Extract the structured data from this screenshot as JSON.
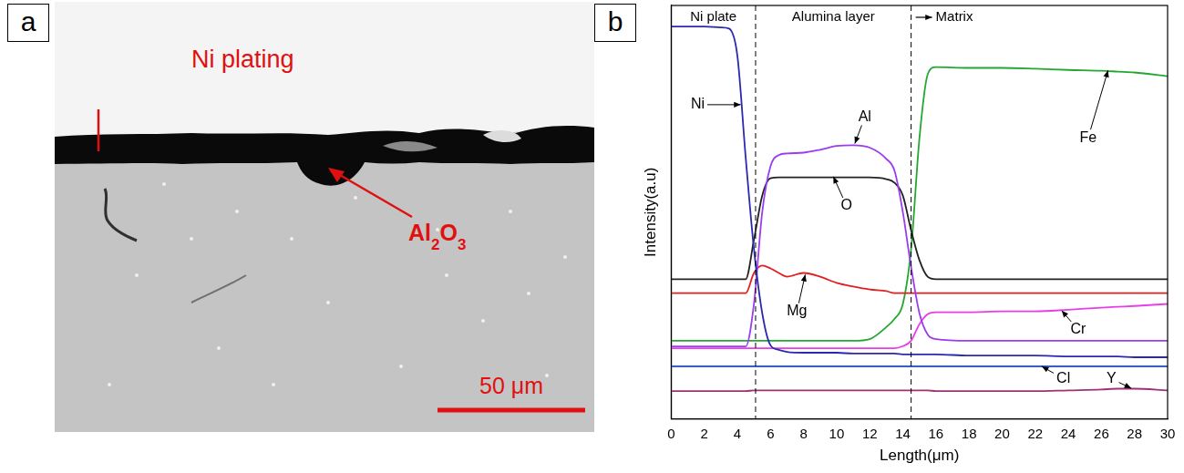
{
  "panel_a": {
    "letter": "a",
    "labels": {
      "plating": "Ni plating",
      "oxide": "Al2O3",
      "scale_bar": "50 μm"
    }
  },
  "chart_data": {
    "type": "line",
    "panel_letter": "b",
    "x_label": "Length(μm)",
    "y_label": "Intensity(a.u)",
    "xlim": [
      0,
      30
    ],
    "xticks": [
      0,
      2,
      4,
      6,
      8,
      10,
      12,
      14,
      16,
      18,
      20,
      22,
      24,
      26,
      28,
      30
    ],
    "ylim": [
      0,
      100
    ],
    "yticks": [],
    "tick_labels": "x",
    "grid": false,
    "regions": [
      "Ni plate",
      "Alumina layer",
      "Matrix"
    ],
    "boundaries": [
      5.1,
      14.5
    ],
    "x": [
      0,
      1,
      2,
      3,
      3.5,
      4,
      4.5,
      5,
      5.5,
      6,
      6.5,
      7,
      8,
      9,
      10,
      11,
      12,
      13,
      13.5,
      14,
      14.5,
      15,
      15.5,
      16,
      18,
      20,
      22,
      24,
      26,
      27,
      28,
      30
    ],
    "series": [
      {
        "name": "Ni",
        "color": "#2a2ab0",
        "values": [
          94.9,
          94.9,
          94.9,
          94.7,
          94.4,
          87.8,
          63.3,
          41.1,
          25.6,
          17.8,
          16.7,
          16.2,
          16.0,
          16.0,
          16.0,
          15.8,
          15.8,
          15.8,
          15.8,
          15.6,
          15.6,
          15.6,
          15.6,
          15.6,
          15.3,
          15.3,
          15.3,
          15.1,
          15.1,
          15.1,
          14.9,
          14.9
        ]
      },
      {
        "name": "Al",
        "color": "#9b3cf0",
        "values": [
          17.5,
          17.5,
          17.5,
          17.5,
          17.5,
          17.5,
          17.5,
          27.8,
          50.0,
          61.1,
          63.8,
          64.2,
          64.4,
          65.1,
          66.0,
          66.2,
          65.6,
          62.9,
          60.0,
          50.0,
          36.7,
          25.6,
          20.4,
          19.3,
          18.9,
          18.9,
          18.9,
          18.9,
          18.9,
          18.9,
          18.9,
          18.9
        ]
      },
      {
        "name": "O",
        "color": "#222222",
        "values": [
          33.8,
          33.8,
          33.8,
          33.8,
          33.8,
          33.8,
          33.8,
          43.3,
          54.0,
          58.2,
          58.4,
          58.4,
          58.4,
          58.4,
          58.4,
          58.4,
          58.4,
          58.0,
          57.1,
          54.0,
          45.6,
          38.4,
          34.4,
          33.8,
          33.8,
          33.8,
          33.8,
          33.8,
          33.8,
          33.8,
          33.8,
          33.8
        ]
      },
      {
        "name": "Mg",
        "color": "#e02020",
        "values": [
          30.4,
          30.4,
          30.4,
          30.4,
          30.4,
          30.4,
          30.4,
          35.3,
          37.1,
          36.4,
          35.3,
          34.4,
          35.3,
          34.4,
          32.9,
          32.0,
          31.3,
          30.9,
          30.4,
          30.4,
          30.4,
          30.4,
          30.4,
          30.4,
          30.4,
          30.4,
          30.4,
          30.4,
          30.4,
          30.4,
          30.4,
          30.4
        ]
      },
      {
        "name": "Fe",
        "color": "#22a832",
        "values": [
          18.9,
          18.9,
          18.9,
          18.9,
          18.9,
          18.9,
          18.9,
          18.9,
          18.9,
          18.9,
          18.9,
          18.9,
          18.9,
          18.9,
          18.9,
          18.9,
          19.3,
          22.2,
          24.2,
          27.8,
          41.1,
          67.8,
          83.3,
          85.1,
          84.9,
          84.9,
          84.7,
          84.4,
          84.2,
          84.0,
          83.8,
          82.9
        ]
      },
      {
        "name": "Cr",
        "color": "#e83ee8",
        "values": [
          17.1,
          17.1,
          17.1,
          17.1,
          17.1,
          17.1,
          17.1,
          17.1,
          17.1,
          17.1,
          17.1,
          17.1,
          17.1,
          17.1,
          17.1,
          17.1,
          17.1,
          17.1,
          17.1,
          17.6,
          18.9,
          22.9,
          25.3,
          25.8,
          25.8,
          26.0,
          26.0,
          26.4,
          26.9,
          27.1,
          27.3,
          27.8
        ]
      },
      {
        "name": "Cl",
        "color": "#2c5cf5",
        "values": [
          12.7,
          12.7,
          12.7,
          12.7,
          12.7,
          12.7,
          12.7,
          12.7,
          12.7,
          12.7,
          12.7,
          12.7,
          12.7,
          12.7,
          12.7,
          12.7,
          12.7,
          12.7,
          12.7,
          12.7,
          12.7,
          12.7,
          12.7,
          12.7,
          12.7,
          12.7,
          12.7,
          12.7,
          12.7,
          12.7,
          12.7,
          12.7
        ]
      },
      {
        "name": "Y",
        "color": "#a0307a",
        "values": [
          6.7,
          6.7,
          6.7,
          6.7,
          6.7,
          6.7,
          6.7,
          6.9,
          6.9,
          6.9,
          6.9,
          6.9,
          6.9,
          6.9,
          6.9,
          6.9,
          6.9,
          6.9,
          6.9,
          6.9,
          6.9,
          6.9,
          6.9,
          6.7,
          6.7,
          6.7,
          6.7,
          6.9,
          7.1,
          7.3,
          7.3,
          6.9
        ]
      }
    ]
  }
}
